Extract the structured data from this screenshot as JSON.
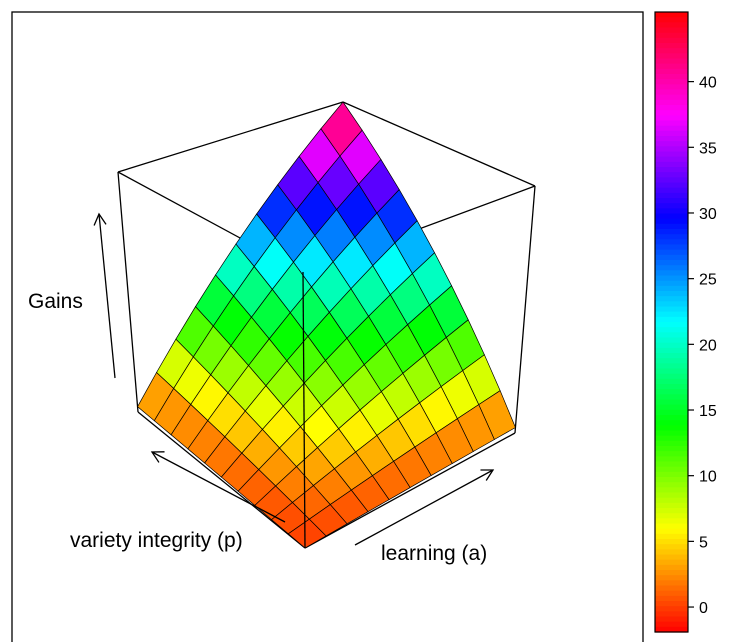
{
  "chart_data": {
    "type": "surface",
    "xlabel": "learning (a)",
    "ylabel": "variety integrity (p)",
    "zlabel": "Gains",
    "x": [
      0,
      0.1,
      0.2,
      0.3,
      0.4,
      0.5,
      0.6,
      0.7,
      0.8,
      0.9,
      1
    ],
    "y": [
      0,
      0.1,
      0.2,
      0.3,
      0.4,
      0.5,
      0.6,
      0.7,
      0.8,
      0.9,
      1
    ],
    "z": [
      [
        0,
        0.1,
        0.2,
        0.3,
        0.4,
        0.5,
        0.6,
        0.7,
        0.8,
        0.9,
        1
      ],
      [
        0.1,
        0.63,
        1.16,
        1.69,
        2.22,
        2.75,
        3.28,
        3.81,
        4.34,
        4.87,
        5.4
      ],
      [
        0.2,
        1.16,
        2.12,
        3.08,
        4.04,
        5,
        5.96,
        6.92,
        7.88,
        8.84,
        9.8
      ],
      [
        0.3,
        1.69,
        3.08,
        4.47,
        5.86,
        7.25,
        8.64,
        10.03,
        11.42,
        12.81,
        14.2
      ],
      [
        0.4,
        2.22,
        4.04,
        5.86,
        7.68,
        9.5,
        11.32,
        13.14,
        14.96,
        16.78,
        18.6
      ],
      [
        0.5,
        2.75,
        5,
        7.25,
        9.5,
        11.75,
        14,
        16.25,
        18.5,
        20.75,
        23
      ],
      [
        0.6,
        3.28,
        5.96,
        8.64,
        11.32,
        14,
        16.68,
        19.36,
        22.04,
        24.72,
        27.4
      ],
      [
        0.7,
        3.81,
        6.92,
        10.03,
        13.14,
        16.25,
        19.36,
        22.47,
        25.58,
        28.69,
        31.8
      ],
      [
        0.8,
        4.34,
        7.88,
        11.42,
        14.96,
        18.5,
        22.04,
        25.58,
        29.12,
        32.66,
        36.2
      ],
      [
        0.9,
        4.87,
        8.84,
        12.81,
        16.78,
        20.75,
        24.72,
        28.69,
        32.66,
        36.63,
        40.6
      ],
      [
        1,
        5.4,
        9.8,
        14.2,
        18.6,
        23,
        27.4,
        31.8,
        36.2,
        40.6,
        45
      ]
    ],
    "xlim": [
      0,
      1
    ],
    "ylim": [
      0,
      1
    ],
    "zlim": [
      0,
      45
    ],
    "colormap": "rainbow",
    "clim": [
      -1.9,
      45.3
    ],
    "colorbar_ticks": [
      0,
      5,
      10,
      15,
      20,
      25,
      30,
      35,
      40
    ]
  }
}
